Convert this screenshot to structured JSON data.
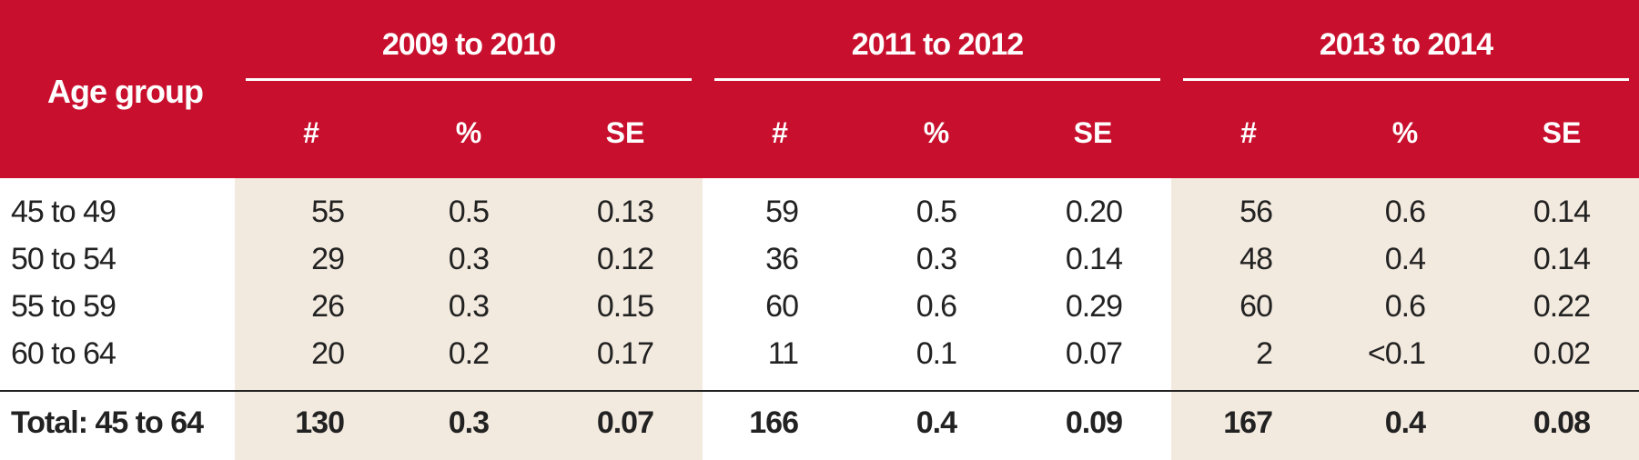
{
  "header": {
    "age_group": "Age group",
    "periods": [
      "2009 to 2010",
      "2011 to 2012",
      "2013 to 2014"
    ],
    "subheaders": [
      "#",
      "%",
      "SE"
    ]
  },
  "rows": [
    {
      "label": "45 to 49",
      "values": [
        "55",
        "0.5",
        "0.13",
        "59",
        "0.5",
        "0.20",
        "56",
        "0.6",
        "0.14"
      ]
    },
    {
      "label": "50 to 54",
      "values": [
        "29",
        "0.3",
        "0.12",
        "36",
        "0.3",
        "0.14",
        "48",
        "0.4",
        "0.14"
      ]
    },
    {
      "label": "55 to 59",
      "values": [
        "26",
        "0.3",
        "0.15",
        "60",
        "0.6",
        "0.29",
        "60",
        "0.6",
        "0.22"
      ]
    },
    {
      "label": "60 to 64",
      "values": [
        "20",
        "0.2",
        "0.17",
        "11",
        "0.1",
        "0.07",
        "2",
        "<0.1",
        "0.02"
      ]
    }
  ],
  "total": {
    "label": "Total: 45 to 64",
    "values": [
      "130",
      "0.3",
      "0.07",
      "166",
      "0.4",
      "0.09",
      "167",
      "0.4",
      "0.08"
    ]
  },
  "colors": {
    "header_bg": "#c8102e",
    "band_bg": "#f3eadf",
    "text": "#222222"
  }
}
